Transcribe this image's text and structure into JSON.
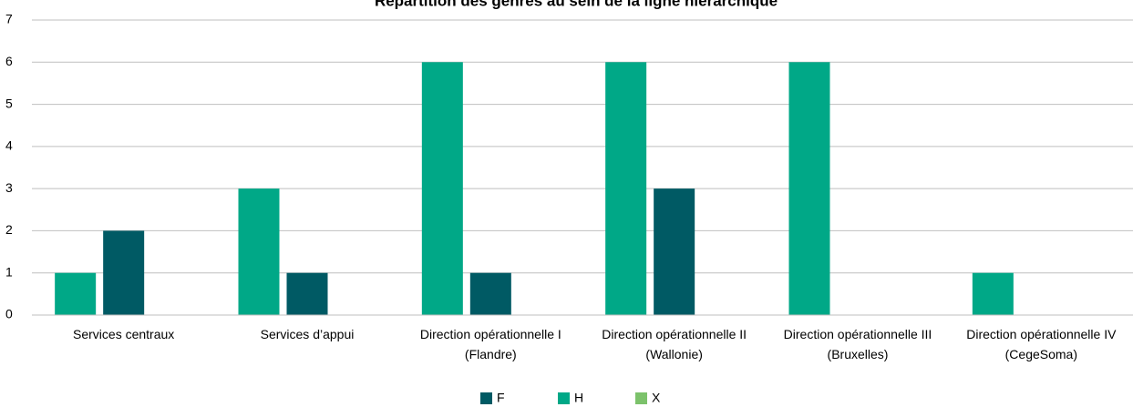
{
  "chart_data": {
    "type": "bar",
    "title": "Répartition des genres au sein de la ligne hiérarchique",
    "categories": [
      [
        "Services centraux"
      ],
      [
        "Services d’appui"
      ],
      [
        "Direction opérationnelle I",
        "(Flandre)"
      ],
      [
        "Direction opérationnelle II",
        "(Wallonie)"
      ],
      [
        "Direction opérationnelle III",
        "(Bruxelles)"
      ],
      [
        "Direction opérationnelle IV",
        "(CegeSoma)"
      ]
    ],
    "series": [
      {
        "name": "F",
        "color": "#005a64",
        "values": [
          2,
          1,
          1,
          3,
          0,
          0
        ]
      },
      {
        "name": "H",
        "color": "#00a887",
        "values": [
          1,
          3,
          6,
          6,
          6,
          1
        ]
      },
      {
        "name": "X",
        "color": "#7cc26b",
        "values": [
          0,
          0,
          0,
          0,
          0,
          0
        ]
      }
    ],
    "ylim": [
      0,
      7
    ],
    "yticks": [
      0,
      1,
      2,
      3,
      4,
      5,
      6,
      7
    ],
    "grid": true,
    "legend": "bottom"
  }
}
